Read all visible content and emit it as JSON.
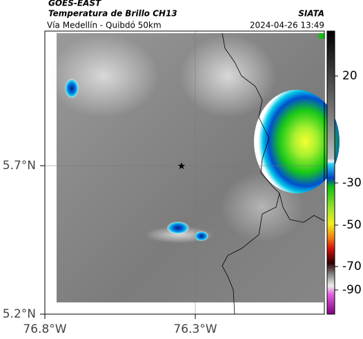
{
  "header": {
    "satellite": "GOES-EAST",
    "product": "Temperatura de Brillo CH13",
    "source": "SIATA",
    "region": "Vía Medellín - Quibdó 50km",
    "datetime": "2024-04-26 13:49"
  },
  "map": {
    "lat_labels": [
      "5.7°N",
      "5.2°N"
    ],
    "lon_labels": [
      "76.8°W",
      "76.3°W"
    ]
  },
  "colorbar": {
    "ticks": [
      "20",
      "-30",
      "-50",
      "-70",
      "-90"
    ]
  }
}
